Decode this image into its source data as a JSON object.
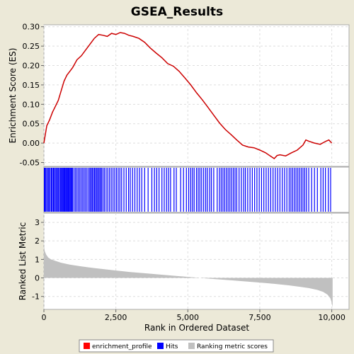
{
  "chart_data": {
    "type": "line",
    "title": "GSEA_Results",
    "xlabel": "Rank in Ordered Dataset",
    "x_ticks": [
      "0",
      "2,500",
      "5,000",
      "7,500",
      "10,000"
    ],
    "x_tick_values": [
      0,
      2500,
      5000,
      7500,
      10000
    ],
    "xlim": [
      0,
      10600
    ],
    "es_panel": {
      "ylabel": "Enrichment Score (ES)",
      "ylim": [
        -0.06,
        0.305
      ],
      "y_ticks": [
        "-0.05",
        "0.00",
        "0.05",
        "0.10",
        "0.15",
        "0.20",
        "0.25",
        "0.30"
      ],
      "y_tick_values": [
        -0.05,
        0.0,
        0.05,
        0.1,
        0.15,
        0.2,
        0.25,
        0.3
      ],
      "grid": true,
      "series": [
        {
          "name": "enrichment_profile",
          "color": "#cc0000",
          "x": [
            0,
            100,
            200,
            300,
            400,
            500,
            600,
            700,
            800,
            900,
            1000,
            1150,
            1300,
            1450,
            1600,
            1750,
            1900,
            2050,
            2200,
            2350,
            2500,
            2650,
            2800,
            2950,
            3100,
            3300,
            3500,
            3700,
            3900,
            4100,
            4300,
            4500,
            4700,
            4900,
            5100,
            5300,
            5500,
            5700,
            5900,
            6100,
            6300,
            6500,
            6700,
            6900,
            7100,
            7300,
            7500,
            7700,
            7900,
            8000,
            8100,
            8200,
            8400,
            8600,
            8800,
            9000,
            9100,
            9200,
            9400,
            9600,
            9800,
            9900,
            10000
          ],
          "y": [
            0.0,
            0.045,
            0.06,
            0.08,
            0.095,
            0.11,
            0.135,
            0.16,
            0.175,
            0.185,
            0.195,
            0.215,
            0.225,
            0.24,
            0.255,
            0.27,
            0.28,
            0.278,
            0.275,
            0.283,
            0.28,
            0.285,
            0.283,
            0.278,
            0.275,
            0.27,
            0.26,
            0.245,
            0.232,
            0.22,
            0.205,
            0.198,
            0.185,
            0.168,
            0.15,
            0.13,
            0.112,
            0.092,
            0.072,
            0.052,
            0.035,
            0.022,
            0.008,
            -0.005,
            -0.01,
            -0.012,
            -0.018,
            -0.025,
            -0.035,
            -0.04,
            -0.032,
            -0.03,
            -0.033,
            -0.025,
            -0.018,
            -0.005,
            0.008,
            0.005,
            0.0,
            -0.003,
            0.005,
            0.008,
            0.0
          ]
        }
      ]
    },
    "hits_panel": {
      "name": "Hits",
      "color": "#0000ff",
      "positions": [
        15,
        40,
        70,
        110,
        150,
        180,
        220,
        260,
        290,
        330,
        360,
        400,
        440,
        470,
        510,
        540,
        580,
        610,
        640,
        670,
        700,
        730,
        760,
        790,
        820,
        850,
        880,
        910,
        940,
        970,
        1000,
        1050,
        1100,
        1150,
        1200,
        1250,
        1300,
        1350,
        1400,
        1450,
        1500,
        1560,
        1600,
        1640,
        1680,
        1720,
        1760,
        1800,
        1840,
        1880,
        1920,
        1960,
        2000,
        2050,
        2100,
        2160,
        2220,
        2280,
        2340,
        2400,
        2460,
        2520,
        2580,
        2640,
        2700,
        2780,
        2860,
        2940,
        3000,
        3080,
        3160,
        3240,
        3320,
        3400,
        3500,
        3620,
        3750,
        3840,
        3920,
        4000,
        4100,
        4180,
        4260,
        4330,
        4400,
        4520,
        4600,
        4750,
        4850,
        4950,
        5030,
        5100,
        5160,
        5220,
        5300,
        5360,
        5420,
        5480,
        5550,
        5620,
        5680,
        5760,
        5820,
        5900,
        6020,
        6100,
        6160,
        6220,
        6280,
        6340,
        6400,
        6460,
        6520,
        6580,
        6640,
        6700,
        6780,
        6860,
        6940,
        7000,
        7080,
        7160,
        7240,
        7320,
        7400,
        7480,
        7560,
        7640,
        7720,
        7800,
        7880,
        7960,
        8040,
        8120,
        8200,
        8280,
        8360,
        8440,
        8520,
        8580,
        8640,
        8700,
        8760,
        8820,
        8880,
        8940,
        9000,
        9060,
        9120,
        9200,
        9300,
        9400,
        9500,
        9620,
        9700,
        9780,
        9880,
        9960
      ]
    },
    "metric_panel": {
      "name": "Ranking metric scores",
      "ylabel": "Ranked List Metric",
      "color": "#c0c0c0",
      "ylim": [
        -1.7,
        3.5
      ],
      "y_ticks": [
        "-1",
        "0",
        "1",
        "2",
        "3"
      ],
      "y_tick_values": [
        -1,
        0,
        1,
        2,
        3
      ],
      "grid": true,
      "x": [
        0,
        30,
        80,
        150,
        250,
        400,
        600,
        900,
        1300,
        1800,
        2400,
        3000,
        3600,
        4200,
        4800,
        5200,
        5600,
        6000,
        6500,
        7000,
        7500,
        8000,
        8500,
        8900,
        9200,
        9500,
        9700,
        9850,
        9950,
        10000,
        10030
      ],
      "y": [
        1.75,
        1.45,
        1.25,
        1.1,
        1.0,
        0.92,
        0.82,
        0.72,
        0.62,
        0.52,
        0.42,
        0.32,
        0.24,
        0.16,
        0.08,
        0.03,
        -0.02,
        -0.07,
        -0.13,
        -0.19,
        -0.25,
        -0.32,
        -0.4,
        -0.48,
        -0.55,
        -0.65,
        -0.75,
        -0.9,
        -1.1,
        -1.35,
        -1.6
      ]
    },
    "legend": {
      "placement": "bottom",
      "items": [
        {
          "label": "enrichment_profile",
          "color": "#ff0000"
        },
        {
          "label": "Hits",
          "color": "#0000ff"
        },
        {
          "label": "Ranking metric scores",
          "color": "#c0c0c0"
        }
      ]
    }
  }
}
